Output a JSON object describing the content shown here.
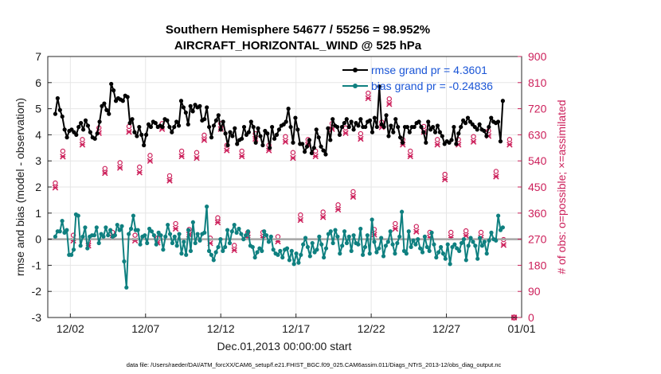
{
  "title_line1": "Southern Hemisphere 54677 / 55256 = 98.952%",
  "title_line2": "AIRCRAFT_HORIZONTAL_WIND @ 525 hPa",
  "footer": "data file: /Users/raeder/DAI/ATM_forcXX/CAM6_setup/f.e21.FHIST_BGC.f09_025.CAM6assim.011/Diags_NTrS_2013-12/obs_diag_output.nc",
  "colors": {
    "rmse": "#000000",
    "bias": "#0f8080",
    "obs": "#cc1f5a",
    "zero_line": "#a6a6a6",
    "legend_text": "#1a55d6"
  },
  "chart_data": {
    "type": "line",
    "xlabel": "Dec.01,2013 00:00:00 start",
    "ylabel_left": "rmse and bias (model - observation)",
    "ylabel_right": "# of obs: o=possible; ×=assimilated",
    "xlim": [
      0.5,
      31.5
    ],
    "ylim_left": [
      -3,
      7
    ],
    "ylim_right": [
      0,
      900
    ],
    "x_ticks": [
      {
        "value": 2,
        "label": "12/02"
      },
      {
        "value": 7,
        "label": "12/07"
      },
      {
        "value": 12,
        "label": "12/12"
      },
      {
        "value": 17,
        "label": "12/17"
      },
      {
        "value": 22,
        "label": "12/22"
      },
      {
        "value": 27,
        "label": "12/27"
      },
      {
        "value": 32,
        "label": "01/01"
      }
    ],
    "y_ticks_left": [
      -3,
      -2,
      -1,
      0,
      1,
      2,
      3,
      4,
      5,
      6,
      7
    ],
    "y_ticks_right": [
      0,
      90,
      180,
      270,
      360,
      450,
      540,
      630,
      720,
      810,
      900
    ],
    "legend": [
      {
        "name": "rmse grand pr = 4.3601",
        "series": "rmse"
      },
      {
        "name": "bias grand pr = -0.24836",
        "series": "bias"
      }
    ],
    "rmse": [
      4.8,
      5.4,
      4.95,
      4.7,
      4.2,
      3.9,
      4.15,
      4.2,
      4.1,
      4.0,
      4.3,
      4.45,
      4.2,
      4.55,
      4.35,
      4.1,
      3.9,
      3.85,
      4.05,
      4.5,
      5.1,
      5.2,
      4.95,
      4.8,
      5.95,
      5.7,
      5.3,
      5.4,
      5.35,
      5.3,
      5.5,
      5.45,
      4.45,
      4.6,
      4.1,
      3.95,
      4.3,
      4.0,
      3.6,
      4.0,
      4.4,
      4.3,
      4.5,
      4.45,
      4.3,
      4.35,
      4.3,
      4.6,
      4.55,
      4.3,
      4.1,
      4.3,
      4.5,
      4.35,
      5.3,
      5.05,
      4.85,
      4.4,
      5.1,
      4.9,
      5.15,
      5.05,
      5.1,
      4.55,
      4.6,
      5.05,
      4.3,
      3.9,
      4.35,
      4.55,
      4.75,
      4.2,
      4.5,
      4.05,
      3.6,
      4.1,
      3.95,
      4.25,
      3.65,
      3.8,
      3.85,
      4.3,
      4.0,
      4.1,
      4.5,
      4.3,
      3.7,
      4.25,
      3.95,
      3.6,
      4.15,
      4.05,
      3.5,
      4.3,
      3.85,
      4.0,
      4.2,
      4.35,
      4.4,
      4.5,
      5.0,
      4.3,
      3.7,
      4.65,
      4.2,
      3.65,
      3.65,
      3.35,
      3.55,
      3.8,
      3.3,
      3.5,
      4.2,
      3.9,
      3.55,
      3.4,
      3.25,
      4.25,
      3.8,
      4.6,
      4.35,
      4.3,
      4.0,
      4.3,
      4.45,
      4.6,
      4.3,
      4.5,
      4.2,
      4.45,
      4.35,
      4.6,
      4.3,
      4.3,
      4.5,
      4.55,
      4.1,
      4.65,
      4.3,
      5.85,
      4.4,
      4.3,
      4.75,
      3.95,
      4.35,
      4.1,
      4.6,
      4.3,
      3.9,
      3.7,
      4.3,
      4.3,
      4.1,
      4.3,
      4.3,
      4.45,
      4.5,
      4.3,
      4.1,
      3.7,
      4.5,
      4.2,
      4.3,
      4.1,
      4.35,
      4.1,
      3.95,
      3.65,
      3.75,
      3.7,
      3.8,
      4.3,
      3.65,
      4.05,
      4.3,
      4.55,
      4.45,
      4.65,
      4.5,
      4.4,
      4.3,
      4.2,
      4.4,
      4.2,
      4.15,
      3.95,
      4.3,
      4.65,
      4.5,
      4.45,
      4.5,
      3.75,
      5.3
    ],
    "bias": [
      0.1,
      0.3,
      0.3,
      0.7,
      0.25,
      0.35,
      -0.6,
      -0.6,
      -0.4,
      0.95,
      0.9,
      -0.25,
      0.1,
      0.45,
      -0.35,
      0.1,
      0.15,
      0.15,
      0.45,
      -0.15,
      0.2,
      0.1,
      0.45,
      0.15,
      0.35,
      0.1,
      0.15,
      0.55,
      0.35,
      0.5,
      -0.85,
      -1.85,
      0.2,
      0.4,
      0.9,
      0.35,
      0.35,
      -0.2,
      0.1,
      0.15,
      -0.15,
      0.4,
      0.3,
      0.15,
      -0.2,
      0.25,
      0.15,
      -0.4,
      0.1,
      0.55,
      0.2,
      -0.15,
      0.1,
      -0.25,
      0.2,
      -0.55,
      -0.1,
      -0.6,
      0.35,
      -0.45,
      0.65,
      -0.15,
      0.2,
      -0.05,
      0.2,
      0.25,
      1.25,
      -0.45,
      -0.6,
      -0.8,
      -0.5,
      -0.3,
      0.0,
      -0.45,
      -0.3,
      0.35,
      -0.15,
      0.3,
      0.55,
      0.25,
      0.4,
      0.2,
      0.0,
      0.15,
      0.3,
      -0.25,
      -0.3,
      -0.7,
      -0.5,
      -0.35,
      -0.45,
      0.3,
      0.15,
      -0.1,
      0.1,
      -0.4,
      -0.55,
      -0.6,
      -0.45,
      -0.7,
      -0.4,
      -0.35,
      -0.8,
      -0.45,
      -0.95,
      -0.55,
      -0.9,
      -0.6,
      -0.2,
      0.05,
      -0.3,
      -0.65,
      -0.15,
      -0.5,
      -0.4,
      0.1,
      -0.2,
      -0.7,
      -0.35,
      0.2,
      0.3,
      -0.15,
      0.35,
      0.1,
      -0.55,
      -0.25,
      0.3,
      -0.15,
      0.1,
      -0.45,
      0.15,
      -0.15,
      -0.2,
      0.4,
      -0.6,
      -0.3,
      0.15,
      -0.55,
      0.75,
      -0.1,
      -0.5,
      -0.35,
      0.05,
      -0.65,
      -0.25,
      -0.1,
      0.3,
      -0.2,
      -0.55,
      -0.15,
      0.1,
      1.05,
      -0.45,
      -0.55,
      0.3,
      -0.3,
      -0.05,
      -0.2,
      0.0,
      -0.35,
      -0.5,
      0.1,
      -0.3,
      -0.45,
      0.25,
      -0.2,
      -0.7,
      -0.5,
      -0.3,
      -0.55,
      -0.75,
      -0.2,
      -0.95,
      -0.3,
      -0.2,
      -0.35,
      -0.45,
      -0.15,
      0.0,
      -0.8,
      -0.25,
      0.05,
      -0.1,
      -0.25,
      -0.75,
      0.05,
      -0.25,
      -0.1,
      -0.55,
      -0.05,
      0.25,
      0.0,
      -0.05,
      0.9,
      0.35,
      0.45
    ],
    "obs_possible_legend": "o",
    "obs_assimilated_legend": "x",
    "obs_counts": [
      {
        "x": 1.0,
        "possible": 450,
        "assimilated": 448
      },
      {
        "x": 1.5,
        "possible": 560,
        "assimilated": 555
      },
      {
        "x": 2.2,
        "possible": 270,
        "assimilated": 265
      },
      {
        "x": 2.8,
        "possible": 600,
        "assimilated": 596
      },
      {
        "x": 3.2,
        "possible": 250,
        "assimilated": 248
      },
      {
        "x": 3.9,
        "possible": 640,
        "assimilated": 636
      },
      {
        "x": 4.3,
        "possible": 500,
        "assimilated": 498
      },
      {
        "x": 4.8,
        "possible": 280,
        "assimilated": 276
      },
      {
        "x": 5.3,
        "possible": 520,
        "assimilated": 516
      },
      {
        "x": 5.9,
        "possible": 645,
        "assimilated": 640
      },
      {
        "x": 6.3,
        "possible": 270,
        "assimilated": 265
      },
      {
        "x": 6.6,
        "possible": 505,
        "assimilated": 500
      },
      {
        "x": 7.3,
        "possible": 545,
        "assimilated": 540
      },
      {
        "x": 7.8,
        "possible": 260,
        "assimilated": 258
      },
      {
        "x": 8.1,
        "possible": 655,
        "assimilated": 650
      },
      {
        "x": 8.6,
        "possible": 475,
        "assimilated": 472
      },
      {
        "x": 9.0,
        "possible": 310,
        "assimilated": 306
      },
      {
        "x": 9.4,
        "possible": 560,
        "assimilated": 556
      },
      {
        "x": 9.9,
        "possible": 290,
        "assimilated": 286
      },
      {
        "x": 10.4,
        "possible": 555,
        "assimilated": 550
      },
      {
        "x": 10.9,
        "possible": 615,
        "assimilated": 612
      },
      {
        "x": 11.3,
        "possible": 260,
        "assimilated": 256
      },
      {
        "x": 11.8,
        "possible": 330,
        "assimilated": 328
      },
      {
        "x": 12.0,
        "possible": 655,
        "assimilated": 650
      },
      {
        "x": 12.4,
        "possible": 580,
        "assimilated": 576
      },
      {
        "x": 12.9,
        "possible": 235,
        "assimilated": 232
      },
      {
        "x": 13.4,
        "possible": 560,
        "assimilated": 556
      },
      {
        "x": 13.8,
        "possible": 280,
        "assimilated": 276
      },
      {
        "x": 14.3,
        "possible": 620,
        "assimilated": 616
      },
      {
        "x": 14.8,
        "possible": 280,
        "assimilated": 276
      },
      {
        "x": 15.2,
        "possible": 580,
        "assimilated": 576
      },
      {
        "x": 15.8,
        "possible": 265,
        "assimilated": 262
      },
      {
        "x": 16.3,
        "possible": 610,
        "assimilated": 606
      },
      {
        "x": 16.8,
        "possible": 555,
        "assimilated": 550
      },
      {
        "x": 17.3,
        "possible": 340,
        "assimilated": 336
      },
      {
        "x": 17.8,
        "possible": 600,
        "assimilated": 596
      },
      {
        "x": 18.3,
        "possible": 560,
        "assimilated": 556
      },
      {
        "x": 18.8,
        "possible": 350,
        "assimilated": 346
      },
      {
        "x": 19.4,
        "possible": 655,
        "assimilated": 650
      },
      {
        "x": 19.8,
        "possible": 375,
        "assimilated": 372
      },
      {
        "x": 20.3,
        "possible": 640,
        "assimilated": 636
      },
      {
        "x": 20.8,
        "possible": 420,
        "assimilated": 416
      },
      {
        "x": 21.3,
        "possible": 620,
        "assimilated": 616
      },
      {
        "x": 21.8,
        "possible": 760,
        "assimilated": 756
      },
      {
        "x": 22.2,
        "possible": 290,
        "assimilated": 286
      },
      {
        "x": 22.7,
        "possible": 660,
        "assimilated": 656
      },
      {
        "x": 23.2,
        "possible": 740,
        "assimilated": 736
      },
      {
        "x": 23.6,
        "possible": 310,
        "assimilated": 306
      },
      {
        "x": 24.1,
        "possible": 600,
        "assimilated": 596
      },
      {
        "x": 24.6,
        "possible": 560,
        "assimilated": 556
      },
      {
        "x": 25.0,
        "possible": 300,
        "assimilated": 296
      },
      {
        "x": 25.5,
        "possible": 645,
        "assimilated": 640
      },
      {
        "x": 25.9,
        "possible": 280,
        "assimilated": 276
      },
      {
        "x": 26.4,
        "possible": 600,
        "assimilated": 596
      },
      {
        "x": 26.9,
        "possible": 480,
        "assimilated": 476
      },
      {
        "x": 27.3,
        "possible": 280,
        "assimilated": 276
      },
      {
        "x": 27.8,
        "possible": 600,
        "assimilated": 596
      },
      {
        "x": 28.3,
        "possible": 285,
        "assimilated": 282
      },
      {
        "x": 28.8,
        "possible": 610,
        "assimilated": 606
      },
      {
        "x": 29.3,
        "possible": 280,
        "assimilated": 276
      },
      {
        "x": 29.8,
        "possible": 630,
        "assimilated": 626
      },
      {
        "x": 30.3,
        "possible": 490,
        "assimilated": 486
      },
      {
        "x": 30.8,
        "possible": 255,
        "assimilated": 250
      },
      {
        "x": 31.2,
        "possible": 600,
        "assimilated": 596
      },
      {
        "x": 31.5,
        "possible": 0,
        "assimilated": 0
      }
    ]
  }
}
